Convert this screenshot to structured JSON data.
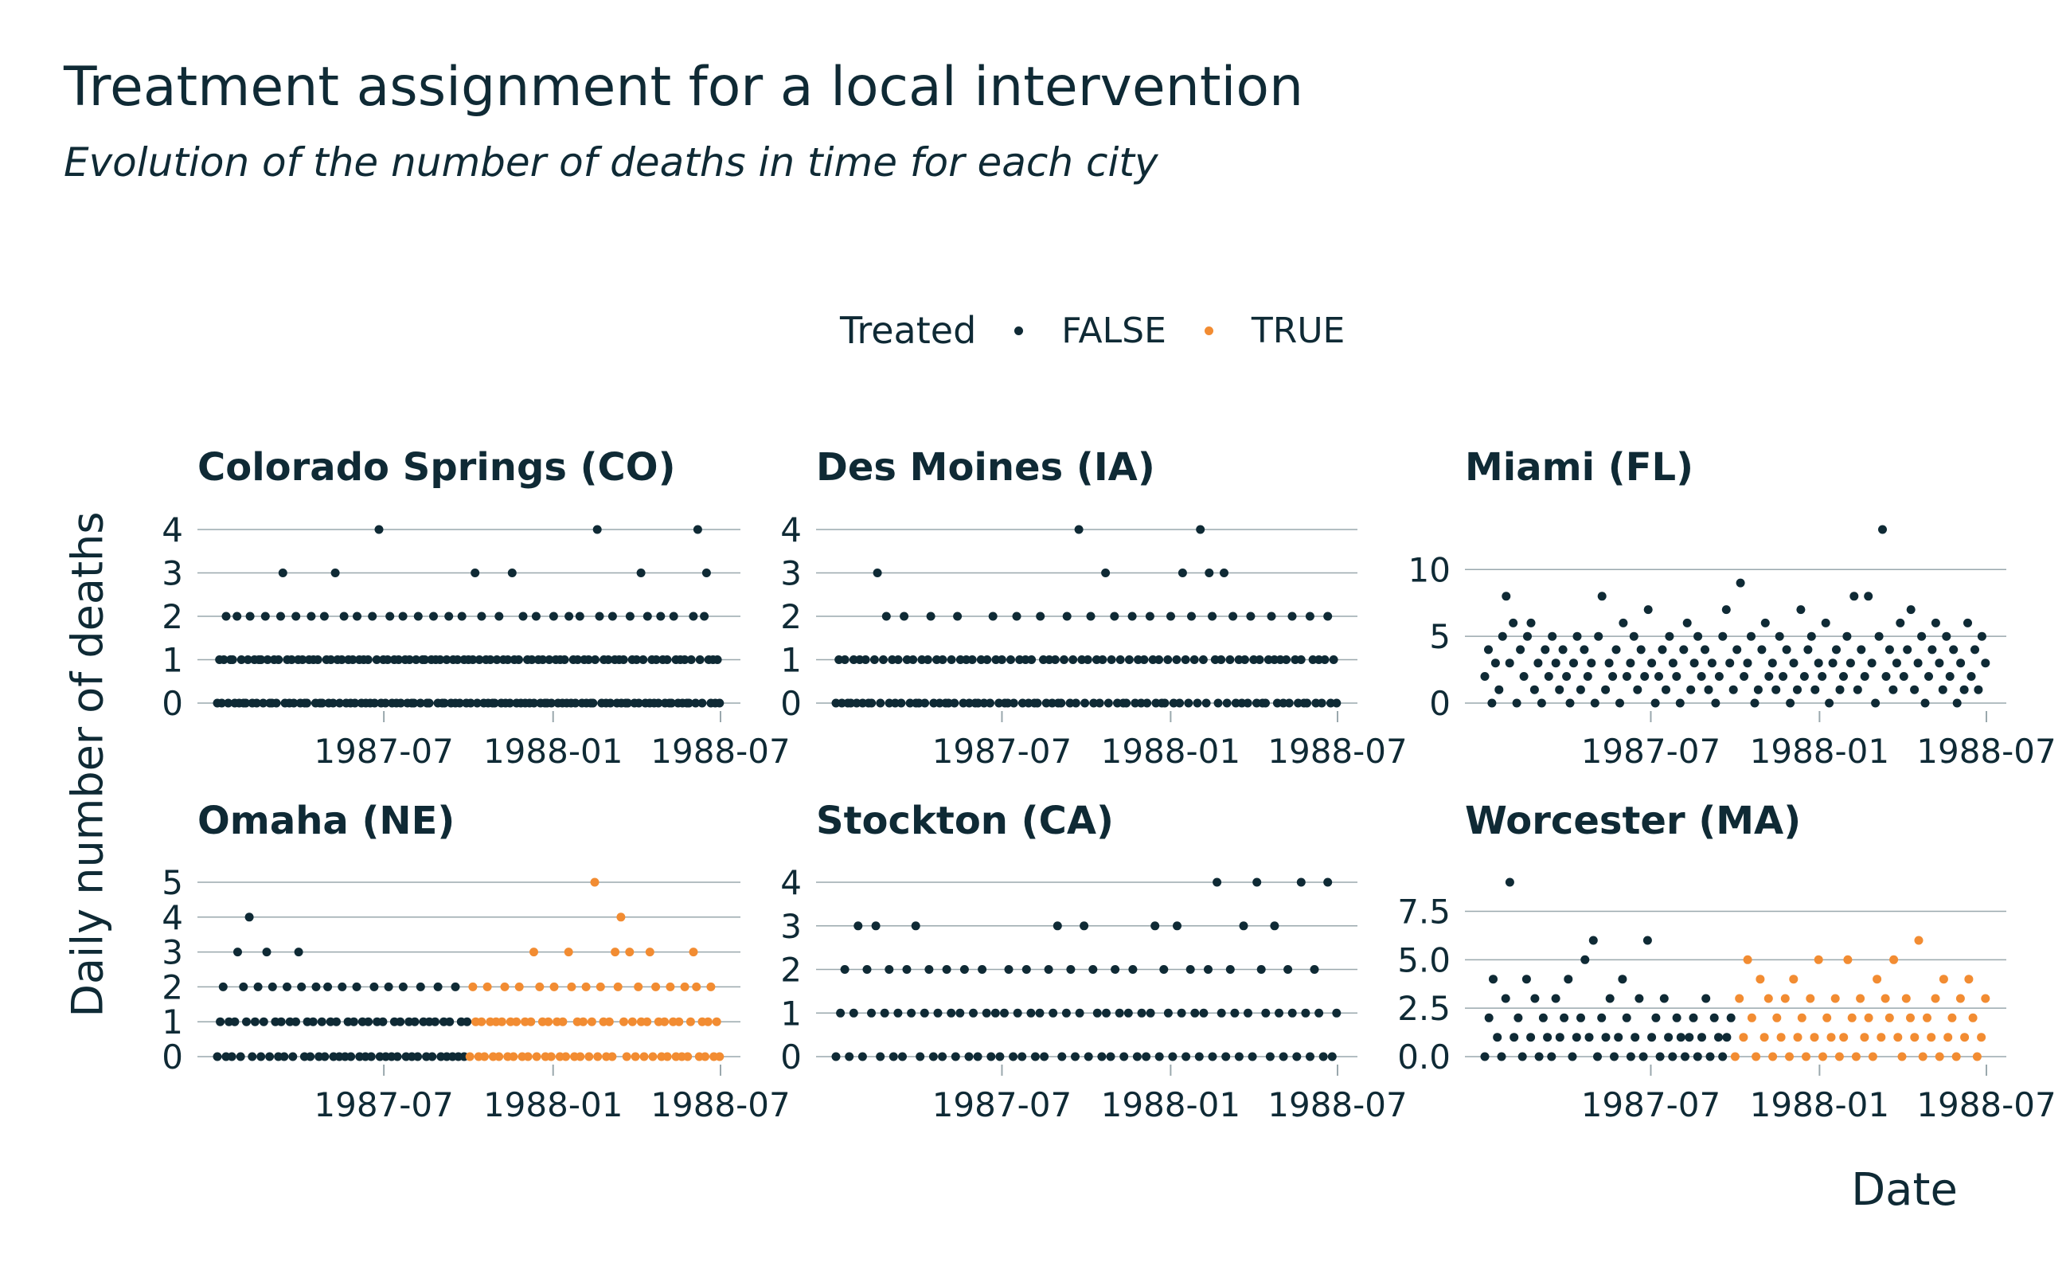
{
  "title": "Treatment assignment for a local intervention",
  "subtitle": "Evolution of the number of deaths in time for each city",
  "legend": {
    "title": "Treated",
    "items": [
      {
        "label": "FALSE",
        "color": "#0f2a35"
      },
      {
        "label": "TRUE",
        "color": "#f28c32"
      }
    ]
  },
  "colors": {
    "false": "#0f2a35",
    "true": "#f28c32",
    "grid": "#9aa8ad",
    "text": "#0f2a35"
  },
  "chart_data": {
    "type": "scatter",
    "xlabel": "Date",
    "ylabel": "Daily number of deaths",
    "x_range": [
      "1987-01-01",
      "1988-06-30"
    ],
    "x_ticks": [
      "1987-07",
      "1988-01",
      "1988-07"
    ],
    "grid": true,
    "legend_position": "top",
    "panels": [
      {
        "name": "Colorado Springs (CO)",
        "ylim": [
          0,
          4
        ],
        "y_ticks": [
          "0",
          "1",
          "2",
          "3",
          "4"
        ],
        "treatment_start": null,
        "values": [
          0,
          1,
          0,
          1,
          2,
          0,
          1,
          1,
          0,
          2,
          0,
          1,
          0,
          0,
          1,
          2,
          0,
          1,
          0,
          1,
          1,
          0,
          2,
          1,
          0,
          0,
          1,
          0,
          1,
          2,
          3,
          0,
          1,
          0,
          1,
          0,
          2,
          1,
          0,
          1,
          0,
          0,
          1,
          2,
          1,
          0,
          1,
          0,
          0,
          2,
          1,
          0,
          1,
          0,
          3,
          1,
          0,
          1,
          2,
          0,
          1,
          0,
          1,
          0,
          2,
          1,
          0,
          1,
          0,
          1,
          0,
          2,
          0,
          1,
          4,
          0,
          1,
          0,
          1,
          2,
          0,
          1,
          0,
          1,
          0,
          2,
          1,
          0,
          1,
          0,
          0,
          1,
          2,
          0,
          1,
          1,
          0,
          0,
          1,
          2,
          1,
          0,
          1,
          0,
          0,
          1,
          2,
          0,
          1,
          0,
          1,
          0,
          2,
          1,
          0,
          1,
          0,
          1,
          3,
          0,
          1,
          2,
          0,
          1,
          0,
          1,
          0,
          0,
          1,
          2,
          0,
          1,
          0,
          1,
          0,
          3,
          1,
          0,
          1,
          0,
          2,
          0,
          1,
          0,
          1,
          0,
          2,
          1,
          0,
          1,
          0,
          0,
          1,
          0,
          2,
          1,
          0,
          1,
          0,
          1,
          0,
          2,
          0,
          1,
          0,
          1,
          2,
          0,
          1,
          0,
          1,
          0,
          0,
          1,
          4,
          2,
          0,
          1,
          0,
          1,
          0,
          2,
          1,
          0,
          1,
          0,
          1,
          0,
          0,
          2,
          1,
          0,
          1,
          0,
          3,
          1,
          0,
          2,
          0,
          1,
          0,
          1,
          0,
          2,
          1,
          0,
          1,
          0,
          0,
          2,
          1,
          0,
          1,
          0,
          1,
          0,
          0,
          1,
          2,
          0,
          4,
          1,
          0,
          2,
          3,
          1,
          0,
          1,
          0,
          1,
          0
        ]
      },
      {
        "name": "Des Moines (IA)",
        "ylim": [
          0,
          4
        ],
        "y_ticks": [
          "0",
          "1",
          "2",
          "3",
          "4"
        ],
        "treatment_start": null,
        "values": [
          0,
          1,
          0,
          1,
          0,
          0,
          1,
          0,
          1,
          0,
          1,
          0,
          0,
          1,
          3,
          0,
          1,
          2,
          0,
          1,
          0,
          1,
          0,
          2,
          1,
          0,
          1,
          0,
          0,
          1,
          0,
          1,
          2,
          0,
          1,
          0,
          1,
          0,
          0,
          1,
          0,
          2,
          1,
          0,
          1,
          0,
          1,
          0,
          0,
          1,
          0,
          1,
          0,
          2,
          1,
          0,
          1,
          0,
          0,
          1,
          0,
          2,
          1,
          0,
          1,
          0,
          1,
          0,
          0,
          2,
          1,
          0,
          1,
          0,
          1,
          0,
          0,
          1,
          2,
          0,
          1,
          0,
          4,
          1,
          0,
          1,
          2,
          0,
          1,
          0,
          1,
          3,
          0,
          1,
          2,
          0,
          1,
          0,
          0,
          1,
          2,
          0,
          1,
          0,
          1,
          0,
          2,
          1,
          0,
          1,
          0,
          0,
          1,
          2,
          0,
          1,
          0,
          3,
          1,
          0,
          2,
          1,
          0,
          4,
          1,
          0,
          3,
          2,
          1,
          0,
          1,
          3,
          0,
          1,
          2,
          0,
          1,
          0,
          1,
          0,
          2,
          1,
          0,
          1,
          0,
          0,
          1,
          2,
          1,
          0,
          1,
          0,
          1,
          0,
          2,
          1,
          0,
          1,
          0,
          0,
          2,
          1,
          0,
          1,
          0,
          1,
          2,
          0,
          1,
          0
        ]
      },
      {
        "name": "Miami (FL)",
        "ylim": [
          0,
          13
        ],
        "y_ticks": [
          "0",
          "5",
          "10"
        ],
        "treatment_start": null,
        "values": [
          2,
          4,
          0,
          3,
          1,
          5,
          8,
          3,
          6,
          0,
          4,
          2,
          5,
          6,
          1,
          3,
          0,
          4,
          2,
          5,
          3,
          1,
          4,
          2,
          0,
          3,
          5,
          1,
          4,
          2,
          3,
          0,
          5,
          8,
          1,
          3,
          2,
          4,
          0,
          6,
          2,
          3,
          5,
          1,
          4,
          2,
          7,
          3,
          0,
          2,
          4,
          1,
          5,
          3,
          2,
          0,
          4,
          6,
          1,
          3,
          5,
          2,
          4,
          1,
          3,
          0,
          2,
          5,
          7,
          3,
          1,
          4,
          9,
          2,
          3,
          5,
          0,
          1,
          4,
          6,
          2,
          3,
          1,
          5,
          2,
          4,
          0,
          3,
          1,
          7,
          2,
          4,
          5,
          1,
          3,
          2,
          6,
          0,
          3,
          4,
          1,
          2,
          5,
          3,
          8,
          1,
          4,
          2,
          8,
          3,
          0,
          5,
          13,
          2,
          4,
          1,
          3,
          6,
          2,
          4,
          7,
          1,
          3,
          5,
          0,
          2,
          4,
          6,
          3,
          1,
          5,
          2,
          4,
          0,
          3,
          1,
          6,
          2,
          4,
          1,
          5,
          3
        ]
      },
      {
        "name": "Omaha (NE)",
        "ylim": [
          0,
          5
        ],
        "y_ticks": [
          "0",
          "1",
          "2",
          "3",
          "4",
          "5"
        ],
        "treatment_start": "1987-10-01",
        "values": [
          0,
          1,
          2,
          0,
          1,
          0,
          1,
          3,
          0,
          2,
          1,
          4,
          0,
          1,
          2,
          0,
          1,
          3,
          0,
          2,
          1,
          0,
          1,
          0,
          2,
          1,
          0,
          1,
          3,
          2,
          0,
          1,
          0,
          1,
          2,
          0,
          1,
          0,
          2,
          1,
          0,
          1,
          0,
          2,
          0,
          1,
          0,
          1,
          2,
          0,
          1,
          0,
          1,
          0,
          2,
          1,
          0,
          1,
          0,
          2,
          0,
          1,
          0,
          1,
          2,
          0,
          1,
          0,
          1,
          0,
          2,
          1,
          0,
          1,
          0,
          1,
          2,
          0,
          1,
          0,
          1,
          0,
          2,
          0,
          1,
          0,
          1,
          0,
          2,
          1,
          0,
          1,
          0,
          2,
          1,
          0,
          1,
          0,
          1,
          2,
          0,
          1,
          0,
          1,
          2,
          0,
          1,
          0,
          1,
          3,
          0,
          2,
          1,
          0,
          1,
          0,
          2,
          1,
          0,
          1,
          0,
          3,
          2,
          0,
          1,
          0,
          1,
          2,
          0,
          1,
          5,
          0,
          2,
          1,
          0,
          1,
          0,
          3,
          2,
          4,
          1,
          0,
          3,
          1,
          0,
          2,
          1,
          0,
          1,
          3,
          0,
          2,
          1,
          0,
          1,
          0,
          2,
          1,
          0,
          1,
          0,
          2,
          0,
          1,
          3,
          2,
          0,
          1,
          0,
          1,
          2,
          0,
          1,
          0
        ]
      },
      {
        "name": "Stockton (CA)",
        "ylim": [
          0,
          4
        ],
        "y_ticks": [
          "0",
          "1",
          "2",
          "3",
          "4"
        ],
        "treatment_start": null,
        "values": [
          0,
          1,
          2,
          0,
          1,
          3,
          0,
          2,
          1,
          3,
          0,
          1,
          2,
          0,
          1,
          0,
          2,
          1,
          3,
          0,
          1,
          2,
          0,
          1,
          0,
          2,
          1,
          0,
          1,
          2,
          0,
          1,
          0,
          2,
          1,
          0,
          1,
          0,
          1,
          2,
          0,
          1,
          0,
          2,
          1,
          0,
          1,
          0,
          2,
          1,
          3,
          0,
          1,
          2,
          0,
          1,
          3,
          0,
          2,
          1,
          0,
          1,
          0,
          2,
          1,
          0,
          1,
          2,
          0,
          1,
          0,
          1,
          3,
          0,
          2,
          1,
          0,
          3,
          1,
          0,
          2,
          1,
          0,
          1,
          2,
          0,
          4,
          1,
          0,
          2,
          1,
          0,
          3,
          1,
          0,
          4,
          2,
          1,
          0,
          3,
          1,
          0,
          2,
          1,
          0,
          4,
          1,
          0,
          2,
          1,
          0,
          4,
          0,
          1
        ]
      },
      {
        "name": "Worcester (MA)",
        "ylim": [
          0,
          9
        ],
        "y_ticks": [
          "0.0",
          "2.5",
          "5.0",
          "7.5"
        ],
        "treatment_start": "1987-10-01",
        "values": [
          0,
          2,
          4,
          1,
          0,
          3,
          9,
          1,
          2,
          0,
          4,
          1,
          3,
          0,
          2,
          1,
          0,
          3,
          1,
          2,
          4,
          0,
          1,
          2,
          5,
          1,
          6,
          0,
          2,
          1,
          3,
          0,
          1,
          4,
          2,
          0,
          1,
          3,
          0,
          6,
          1,
          2,
          0,
          3,
          1,
          0,
          2,
          1,
          0,
          1,
          2,
          0,
          1,
          3,
          0,
          2,
          1,
          0,
          1,
          2,
          0,
          3,
          1,
          5,
          2,
          0,
          4,
          1,
          3,
          0,
          2,
          1,
          3,
          0,
          4,
          1,
          2,
          0,
          3,
          1,
          5,
          0,
          2,
          1,
          3,
          0,
          1,
          5,
          2,
          0,
          3,
          1,
          2,
          0,
          4,
          1,
          3,
          2,
          5,
          1,
          0,
          3,
          2,
          1,
          6,
          0,
          2,
          1,
          3,
          0,
          4,
          1,
          2,
          0,
          3,
          1,
          4,
          2,
          0,
          1,
          3
        ]
      }
    ]
  }
}
